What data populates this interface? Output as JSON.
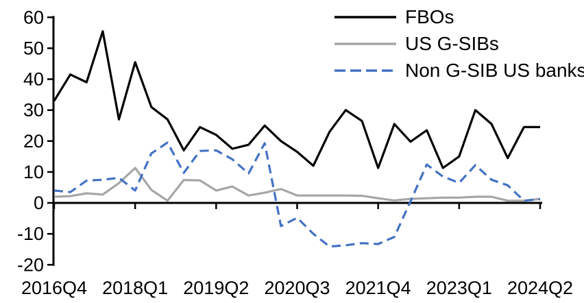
{
  "chart_data": {
    "type": "line",
    "title": "",
    "grid": false,
    "legend_position": "top-right",
    "background_color": "#ffffff",
    "axis_color": "#000000",
    "categories": [
      "2016Q4",
      "2017Q1",
      "2017Q2",
      "2017Q3",
      "2017Q4",
      "2018Q1",
      "2018Q2",
      "2018Q3",
      "2018Q4",
      "2019Q1",
      "2019Q2",
      "2019Q3",
      "2019Q4",
      "2020Q1",
      "2020Q2",
      "2020Q3",
      "2020Q4",
      "2021Q1",
      "2021Q2",
      "2021Q3",
      "2021Q4",
      "2022Q1",
      "2022Q2",
      "2022Q3",
      "2022Q4",
      "2023Q1",
      "2023Q2",
      "2023Q3",
      "2023Q4",
      "2024Q1",
      "2024Q2"
    ],
    "x_tick_labels": [
      "2016Q4",
      "2018Q1",
      "2019Q2",
      "2020Q3",
      "2021Q4",
      "2023Q1",
      "2024Q2"
    ],
    "x_tick_every": 5,
    "y_axis": {
      "min": -20,
      "max": 60,
      "step": 10,
      "tick_labels": [
        "60",
        "50",
        "40",
        "30",
        "20",
        "10",
        "0",
        "-10",
        "-20"
      ]
    },
    "series": [
      {
        "name": "FBOs",
        "color": "#000000",
        "style": "solid",
        "values": [
          33,
          41.5,
          39,
          55.5,
          27,
          45.5,
          31,
          27,
          17,
          24.5,
          22,
          17.5,
          18.8,
          25,
          20,
          16.5,
          12,
          23,
          30,
          26.5,
          11.3,
          25.5,
          19.8,
          23.5,
          11.3,
          15,
          30,
          25.5,
          14.5,
          24.5,
          24.5
        ]
      },
      {
        "name": "US G-SIBs",
        "color": "#A6A6A6",
        "style": "solid",
        "values": [
          2,
          2.2,
          3.1,
          2.7,
          6.4,
          11.3,
          4.2,
          0.7,
          7.4,
          7.3,
          4,
          5.3,
          2.4,
          3.3,
          4.5,
          2.4,
          2.4,
          2.4,
          2.4,
          2.3,
          1.5,
          0.8,
          1.3,
          1.5,
          1.7,
          1.7,
          2,
          2,
          0.7,
          0.7,
          1.3
        ]
      },
      {
        "name": "Non G-SIB US banks",
        "color": "#4472C4",
        "style": "dashed",
        "values": [
          4,
          3.5,
          7.2,
          7.5,
          8.1,
          4,
          16,
          19.5,
          9.7,
          16.8,
          17,
          14.1,
          9.5,
          19.3,
          -7.5,
          -4.8,
          -10,
          -14.1,
          -13.7,
          -13,
          -13.3,
          -11,
          0.5,
          12.4,
          8.5,
          6.5,
          12.2,
          7.5,
          5.7,
          0.7,
          1.2
        ]
      }
    ]
  }
}
